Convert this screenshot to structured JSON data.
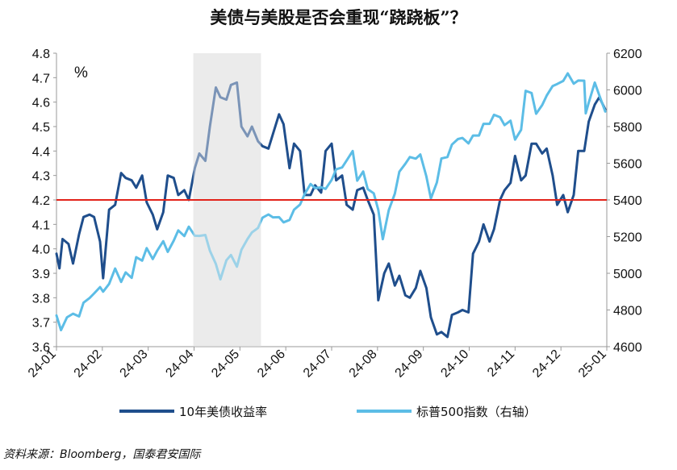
{
  "title": "美债与美股是否会重现“跷跷板”？",
  "source": "资料来源：Bloomberg，国泰君安国际",
  "chart_data": {
    "type": "line",
    "unit_label": "%",
    "x_ticks": [
      "24-01",
      "24-02",
      "24-03",
      "24-04",
      "24-05",
      "24-06",
      "24-07",
      "24-08",
      "24-09",
      "24-10",
      "24-11",
      "24-12",
      "25-01"
    ],
    "x_range": [
      "2024-01-01",
      "2025-01-01"
    ],
    "ylim_left": [
      3.6,
      4.8
    ],
    "ylim_right": [
      4600,
      6200
    ],
    "y_ticks_left": [
      "3.6",
      "3.7",
      "3.8",
      "3.9",
      "4.0",
      "4.1",
      "4.2",
      "4.3",
      "4.4",
      "4.5",
      "4.6",
      "4.7",
      "4.8"
    ],
    "y_ticks_right": [
      "4600",
      "4800",
      "5000",
      "5200",
      "5400",
      "5600",
      "5800",
      "6000",
      "6200"
    ],
    "reference_line": {
      "axis": "left",
      "value": 4.2,
      "color": "#e2231a"
    },
    "shaded_range": [
      "2024-04-01",
      "2024-05-16"
    ],
    "series": [
      {
        "name": "10年美债收益率",
        "axis": "left",
        "color": "#1f4e8c",
        "points": [
          [
            "2024-01-01",
            3.98
          ],
          [
            "2024-01-03",
            3.92
          ],
          [
            "2024-01-05",
            4.04
          ],
          [
            "2024-01-09",
            4.02
          ],
          [
            "2024-01-12",
            3.94
          ],
          [
            "2024-01-16",
            4.06
          ],
          [
            "2024-01-19",
            4.13
          ],
          [
            "2024-01-23",
            4.14
          ],
          [
            "2024-01-26",
            4.13
          ],
          [
            "2024-01-30",
            4.03
          ],
          [
            "2024-02-01",
            3.88
          ],
          [
            "2024-02-05",
            4.16
          ],
          [
            "2024-02-09",
            4.18
          ],
          [
            "2024-02-13",
            4.31
          ],
          [
            "2024-02-16",
            4.29
          ],
          [
            "2024-02-20",
            4.28
          ],
          [
            "2024-02-23",
            4.25
          ],
          [
            "2024-02-27",
            4.3
          ],
          [
            "2024-03-01",
            4.19
          ],
          [
            "2024-03-05",
            4.14
          ],
          [
            "2024-03-08",
            4.08
          ],
          [
            "2024-03-12",
            4.15
          ],
          [
            "2024-03-15",
            4.3
          ],
          [
            "2024-03-19",
            4.29
          ],
          [
            "2024-03-22",
            4.22
          ],
          [
            "2024-03-26",
            4.24
          ],
          [
            "2024-03-29",
            4.2
          ],
          [
            "2024-04-02",
            4.33
          ],
          [
            "2024-04-05",
            4.39
          ],
          [
            "2024-04-09",
            4.36
          ],
          [
            "2024-04-12",
            4.5
          ],
          [
            "2024-04-16",
            4.66
          ],
          [
            "2024-04-19",
            4.62
          ],
          [
            "2024-04-23",
            4.61
          ],
          [
            "2024-04-26",
            4.67
          ],
          [
            "2024-04-30",
            4.68
          ],
          [
            "2024-05-03",
            4.5
          ],
          [
            "2024-05-07",
            4.46
          ],
          [
            "2024-05-10",
            4.5
          ],
          [
            "2024-05-14",
            4.44
          ],
          [
            "2024-05-17",
            4.42
          ],
          [
            "2024-05-21",
            4.41
          ],
          [
            "2024-05-24",
            4.47
          ],
          [
            "2024-05-28",
            4.55
          ],
          [
            "2024-05-31",
            4.51
          ],
          [
            "2024-06-04",
            4.33
          ],
          [
            "2024-06-07",
            4.43
          ],
          [
            "2024-06-11",
            4.4
          ],
          [
            "2024-06-14",
            4.22
          ],
          [
            "2024-06-18",
            4.22
          ],
          [
            "2024-06-21",
            4.26
          ],
          [
            "2024-06-25",
            4.23
          ],
          [
            "2024-06-28",
            4.4
          ],
          [
            "2024-07-02",
            4.43
          ],
          [
            "2024-07-05",
            4.28
          ],
          [
            "2024-07-09",
            4.3
          ],
          [
            "2024-07-12",
            4.18
          ],
          [
            "2024-07-16",
            4.16
          ],
          [
            "2024-07-19",
            4.24
          ],
          [
            "2024-07-23",
            4.25
          ],
          [
            "2024-07-26",
            4.2
          ],
          [
            "2024-07-30",
            4.14
          ],
          [
            "2024-08-02",
            3.79
          ],
          [
            "2024-08-06",
            3.9
          ],
          [
            "2024-08-09",
            3.94
          ],
          [
            "2024-08-13",
            3.85
          ],
          [
            "2024-08-16",
            3.89
          ],
          [
            "2024-08-20",
            3.81
          ],
          [
            "2024-08-23",
            3.8
          ],
          [
            "2024-08-27",
            3.84
          ],
          [
            "2024-08-30",
            3.91
          ],
          [
            "2024-09-03",
            3.84
          ],
          [
            "2024-09-06",
            3.72
          ],
          [
            "2024-09-10",
            3.65
          ],
          [
            "2024-09-13",
            3.66
          ],
          [
            "2024-09-17",
            3.64
          ],
          [
            "2024-09-20",
            3.73
          ],
          [
            "2024-09-24",
            3.74
          ],
          [
            "2024-09-27",
            3.75
          ],
          [
            "2024-10-01",
            3.74
          ],
          [
            "2024-10-04",
            3.98
          ],
          [
            "2024-10-08",
            4.03
          ],
          [
            "2024-10-11",
            4.1
          ],
          [
            "2024-10-15",
            4.03
          ],
          [
            "2024-10-18",
            4.08
          ],
          [
            "2024-10-22",
            4.2
          ],
          [
            "2024-10-25",
            4.24
          ],
          [
            "2024-10-29",
            4.27
          ],
          [
            "2024-11-01",
            4.38
          ],
          [
            "2024-11-05",
            4.28
          ],
          [
            "2024-11-08",
            4.3
          ],
          [
            "2024-11-12",
            4.43
          ],
          [
            "2024-11-15",
            4.43
          ],
          [
            "2024-11-19",
            4.39
          ],
          [
            "2024-11-22",
            4.41
          ],
          [
            "2024-11-26",
            4.3
          ],
          [
            "2024-11-29",
            4.18
          ],
          [
            "2024-12-03",
            4.22
          ],
          [
            "2024-12-06",
            4.15
          ],
          [
            "2024-12-10",
            4.22
          ],
          [
            "2024-12-13",
            4.4
          ],
          [
            "2024-12-17",
            4.4
          ],
          [
            "2024-12-20",
            4.52
          ],
          [
            "2024-12-24",
            4.59
          ],
          [
            "2024-12-27",
            4.62
          ],
          [
            "2024-12-31",
            4.57
          ]
        ]
      },
      {
        "name": "标普500指数（右轴）",
        "axis": "right",
        "color": "#5cbde6",
        "points": [
          [
            "2024-01-01",
            4770
          ],
          [
            "2024-01-04",
            4690
          ],
          [
            "2024-01-08",
            4760
          ],
          [
            "2024-01-12",
            4780
          ],
          [
            "2024-01-16",
            4765
          ],
          [
            "2024-01-19",
            4840
          ],
          [
            "2024-01-23",
            4865
          ],
          [
            "2024-01-26",
            4890
          ],
          [
            "2024-01-30",
            4925
          ],
          [
            "2024-02-01",
            4900
          ],
          [
            "2024-02-05",
            4942
          ],
          [
            "2024-02-09",
            5026
          ],
          [
            "2024-02-13",
            4953
          ],
          [
            "2024-02-16",
            5005
          ],
          [
            "2024-02-20",
            4975
          ],
          [
            "2024-02-23",
            5088
          ],
          [
            "2024-02-27",
            5069
          ],
          [
            "2024-03-01",
            5137
          ],
          [
            "2024-03-05",
            5078
          ],
          [
            "2024-03-08",
            5123
          ],
          [
            "2024-03-12",
            5175
          ],
          [
            "2024-03-15",
            5117
          ],
          [
            "2024-03-19",
            5178
          ],
          [
            "2024-03-22",
            5234
          ],
          [
            "2024-03-26",
            5203
          ],
          [
            "2024-03-29",
            5254
          ],
          [
            "2024-04-02",
            5205
          ],
          [
            "2024-04-05",
            5204
          ],
          [
            "2024-04-09",
            5209
          ],
          [
            "2024-04-12",
            5123
          ],
          [
            "2024-04-16",
            5051
          ],
          [
            "2024-04-19",
            4967
          ],
          [
            "2024-04-23",
            5071
          ],
          [
            "2024-04-26",
            5100
          ],
          [
            "2024-04-30",
            5036
          ],
          [
            "2024-05-03",
            5128
          ],
          [
            "2024-05-07",
            5187
          ],
          [
            "2024-05-10",
            5223
          ],
          [
            "2024-05-14",
            5247
          ],
          [
            "2024-05-17",
            5303
          ],
          [
            "2024-05-21",
            5321
          ],
          [
            "2024-05-24",
            5305
          ],
          [
            "2024-05-28",
            5306
          ],
          [
            "2024-05-31",
            5278
          ],
          [
            "2024-06-04",
            5291
          ],
          [
            "2024-06-07",
            5347
          ],
          [
            "2024-06-11",
            5375
          ],
          [
            "2024-06-14",
            5431
          ],
          [
            "2024-06-18",
            5487
          ],
          [
            "2024-06-21",
            5464
          ],
          [
            "2024-06-25",
            5469
          ],
          [
            "2024-06-28",
            5460
          ],
          [
            "2024-07-02",
            5509
          ],
          [
            "2024-07-05",
            5567
          ],
          [
            "2024-07-09",
            5577
          ],
          [
            "2024-07-12",
            5615
          ],
          [
            "2024-07-16",
            5667
          ],
          [
            "2024-07-19",
            5505
          ],
          [
            "2024-07-23",
            5555
          ],
          [
            "2024-07-26",
            5459
          ],
          [
            "2024-07-30",
            5436
          ],
          [
            "2024-08-02",
            5346
          ],
          [
            "2024-08-05",
            5186
          ],
          [
            "2024-08-09",
            5344
          ],
          [
            "2024-08-13",
            5434
          ],
          [
            "2024-08-16",
            5554
          ],
          [
            "2024-08-20",
            5597
          ],
          [
            "2024-08-23",
            5634
          ],
          [
            "2024-08-27",
            5625
          ],
          [
            "2024-08-30",
            5648
          ],
          [
            "2024-09-03",
            5528
          ],
          [
            "2024-09-06",
            5408
          ],
          [
            "2024-09-10",
            5495
          ],
          [
            "2024-09-13",
            5626
          ],
          [
            "2024-09-17",
            5634
          ],
          [
            "2024-09-20",
            5702
          ],
          [
            "2024-09-24",
            5732
          ],
          [
            "2024-09-27",
            5738
          ],
          [
            "2024-10-01",
            5708
          ],
          [
            "2024-10-04",
            5751
          ],
          [
            "2024-10-08",
            5751
          ],
          [
            "2024-10-11",
            5815
          ],
          [
            "2024-10-15",
            5815
          ],
          [
            "2024-10-18",
            5864
          ],
          [
            "2024-10-22",
            5851
          ],
          [
            "2024-10-25",
            5808
          ],
          [
            "2024-10-29",
            5832
          ],
          [
            "2024-11-01",
            5729
          ],
          [
            "2024-11-05",
            5782
          ],
          [
            "2024-11-08",
            5995
          ],
          [
            "2024-11-12",
            5983
          ],
          [
            "2024-11-15",
            5870
          ],
          [
            "2024-11-19",
            5917
          ],
          [
            "2024-11-22",
            5969
          ],
          [
            "2024-11-26",
            6021
          ],
          [
            "2024-11-29",
            6032
          ],
          [
            "2024-12-03",
            6049
          ],
          [
            "2024-12-06",
            6090
          ],
          [
            "2024-12-10",
            6034
          ],
          [
            "2024-12-13",
            6051
          ],
          [
            "2024-12-17",
            6050
          ],
          [
            "2024-12-18",
            5872
          ],
          [
            "2024-12-20",
            5930
          ],
          [
            "2024-12-24",
            6040
          ],
          [
            "2024-12-27",
            5970
          ],
          [
            "2024-12-31",
            5882
          ]
        ]
      }
    ]
  }
}
